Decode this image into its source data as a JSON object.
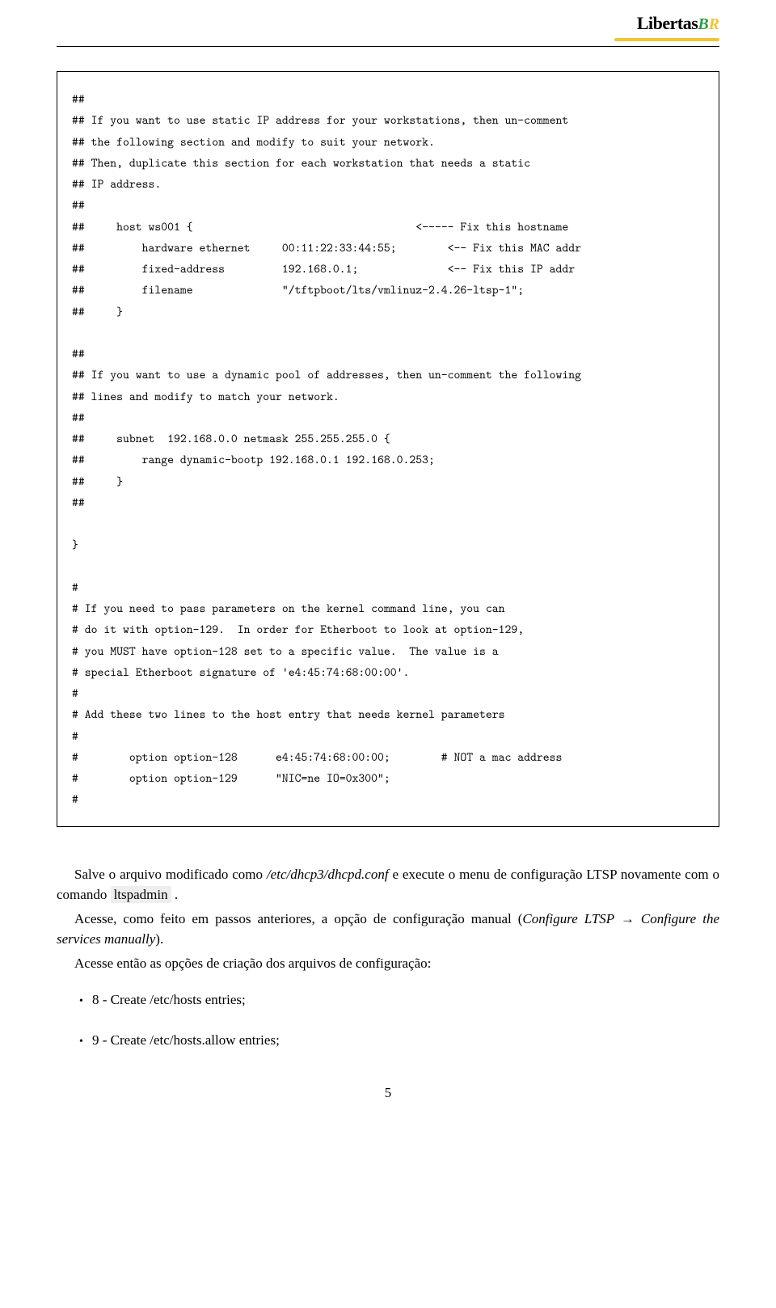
{
  "logo": {
    "name": "Libertas",
    "suffix_green": "B",
    "suffix_yellow": "R"
  },
  "code": {
    "block1_l1": "##",
    "block1_l2": "## If you want to use static IP address for your workstations, then un-comment",
    "block1_l3": "## the following section and modify to suit your network.",
    "block1_l4": "## Then, duplicate this section for each workstation that needs a static",
    "block1_l5": "## IP address.",
    "block1_l6": "##",
    "block1_l7": "##     host ws001 {                                   <----- Fix this hostname",
    "block1_l8": "##         hardware ethernet     00:11:22:33:44:55;        <-- Fix this MAC addr",
    "block1_l9": "##         fixed-address         192.168.0.1;              <-- Fix this IP addr",
    "block1_l10": "##         filename              \"/tftpboot/lts/vmlinuz-2.4.26-ltsp-1\";",
    "block1_l11": "##     }",
    "block2_l1": "##",
    "block2_l2": "## If you want to use a dynamic pool of addresses, then un-comment the following",
    "block2_l3": "## lines and modify to match your network.",
    "block2_l4": "##",
    "block2_l5": "##     subnet  192.168.0.0 netmask 255.255.255.0 {",
    "block2_l6": "##         range dynamic-bootp 192.168.0.1 192.168.0.253;",
    "block2_l7": "##     }",
    "block2_l8": "##",
    "block3_l1": "}",
    "block4_l1": "#",
    "block4_l2": "# If you need to pass parameters on the kernel command line, you can",
    "block4_l3": "# do it with option-129.  In order for Etherboot to look at option-129,",
    "block4_l4": "# you MUST have option-128 set to a specific value.  The value is a",
    "block4_l5": "# special Etherboot signature of 'e4:45:74:68:00:00'.",
    "block4_l6": "#",
    "block4_l7": "# Add these two lines to the host entry that needs kernel parameters",
    "block4_l8": "#",
    "block4_l9": "#        option option-128      e4:45:74:68:00:00;        # NOT a mac address",
    "block4_l10": "#        option option-129      \"NIC=ne IO=0x300\";",
    "block4_l11": "#"
  },
  "para1_a": "Salve o arquivo modificado como ",
  "para1_file": "/etc/dhcp3/dhcpd.conf",
  "para1_b": " e execute o menu de configuração LTSP novamente com o comando ",
  "para1_cmd": "ltspadmin",
  "para1_c": " .",
  "para2_a": "Acesse, como feito em passos anteriores, a opção de configuração manual (",
  "para2_i1": "Configure LTSP ",
  "para2_arrow": "→",
  "para2_i2": " Configure the services manually",
  "para2_b": ").",
  "para3": "Acesse então as opções de criação dos arquivos de configuração:",
  "bullet1": "8 - Create /etc/hosts entries;",
  "bullet2": "9 - Create /etc/hosts.allow entries;",
  "pagenum": "5"
}
